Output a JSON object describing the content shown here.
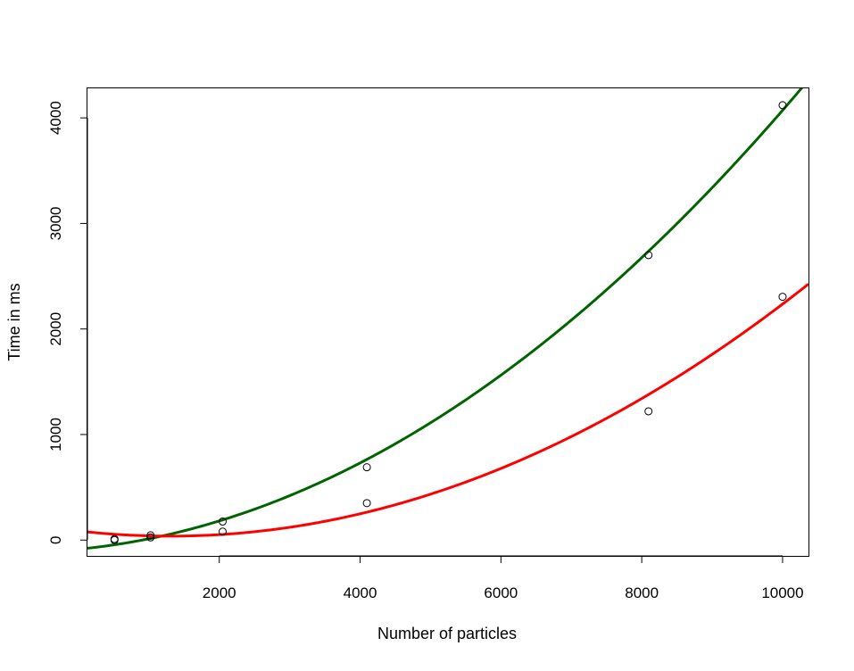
{
  "chart_data": {
    "type": "scatter",
    "title": "",
    "xlabel": "Number of particles",
    "ylabel": "Time in ms",
    "xlim": [
      128,
      10368
    ],
    "ylim": [
      -150,
      4280
    ],
    "x_ticks": [
      2000,
      4000,
      6000,
      8000,
      10000
    ],
    "y_ticks": [
      0,
      1000,
      2000,
      3000,
      4000
    ],
    "grid": false,
    "legend": "none",
    "points": {
      "marker": "open-circle",
      "series": [
        {
          "x": [
            512,
            1024,
            2048,
            4096,
            8096,
            10000
          ],
          "y": [
            10,
            45,
            175,
            690,
            2700,
            4120
          ]
        },
        {
          "x": [
            512,
            1024,
            2048,
            4096,
            8096,
            10000
          ],
          "y": [
            0,
            25,
            80,
            350,
            1220,
            2305
          ]
        }
      ]
    },
    "fitted_curves": [
      {
        "color": "#006400",
        "model": "quadratic",
        "coefficients": [
          -86.3,
          0.0632,
          3.526e-05
        ]
      },
      {
        "color": "#ff0000",
        "model": "quadratic",
        "coefficients": [
          86.4,
          -0.07566,
          2.906e-05
        ]
      }
    ]
  }
}
